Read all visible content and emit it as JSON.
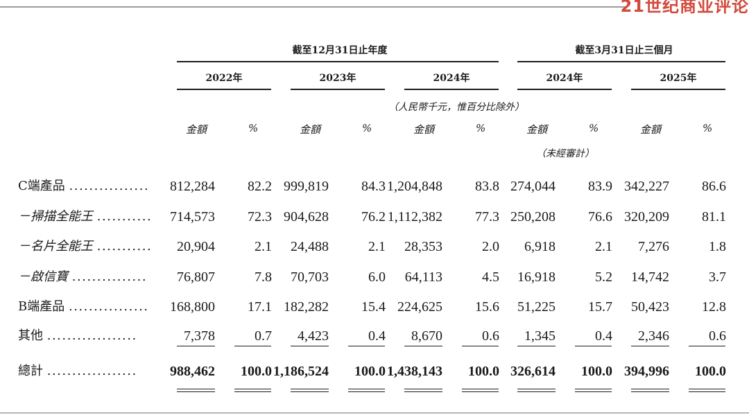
{
  "brand": {
    "text": "21世纪商业评论"
  },
  "header": {
    "group_fy": "截至12月31日止年度",
    "group_q": "截至3月31日止三個月",
    "periods": [
      "2022年",
      "2023年",
      "2024年",
      "2024年",
      "2025年"
    ],
    "unit_note": "（人民幣千元，惟百分比除外）",
    "unaudited_note": "（未經審計）",
    "col_amount": "金額",
    "col_pct": "%"
  },
  "rows": [
    {
      "label": "C端產品",
      "dots": "................",
      "values": [
        "812,284",
        "82.2",
        "999,819",
        "84.3",
        "1,204,848",
        "83.8",
        "274,044",
        "83.9",
        "342,227",
        "86.6"
      ]
    },
    {
      "label": "－掃描全能王",
      "dots": "...........",
      "values": [
        "714,573",
        "72.3",
        "904,628",
        "76.2",
        "1,112,382",
        "77.3",
        "250,208",
        "76.6",
        "320,209",
        "81.1"
      ]
    },
    {
      "label": "－名片全能王",
      "dots": "...........",
      "values": [
        "20,904",
        "2.1",
        "24,488",
        "2.1",
        "28,353",
        "2.0",
        "6,918",
        "2.1",
        "7,276",
        "1.8"
      ]
    },
    {
      "label": "－啟信寶",
      "dots": "...............",
      "values": [
        "76,807",
        "7.8",
        "70,703",
        "6.0",
        "64,113",
        "4.5",
        "16,918",
        "5.2",
        "14,742",
        "3.7"
      ]
    },
    {
      "label": "B端產品",
      "dots": "................",
      "values": [
        "168,800",
        "17.1",
        "182,282",
        "15.4",
        "224,625",
        "15.6",
        "51,225",
        "15.7",
        "50,423",
        "12.8"
      ]
    },
    {
      "label": "其他",
      "dots": "..................",
      "values": [
        "7,378",
        "0.7",
        "4,423",
        "0.4",
        "8,670",
        "0.6",
        "1,345",
        "0.4",
        "2,346",
        "0.6"
      ]
    },
    {
      "label": "總計",
      "dots": "..................",
      "values": [
        "988,462",
        "100.0",
        "1,186,524",
        "100.0",
        "1,438,143",
        "100.0",
        "326,614",
        "100.0",
        "394,996",
        "100.0"
      ]
    }
  ]
}
